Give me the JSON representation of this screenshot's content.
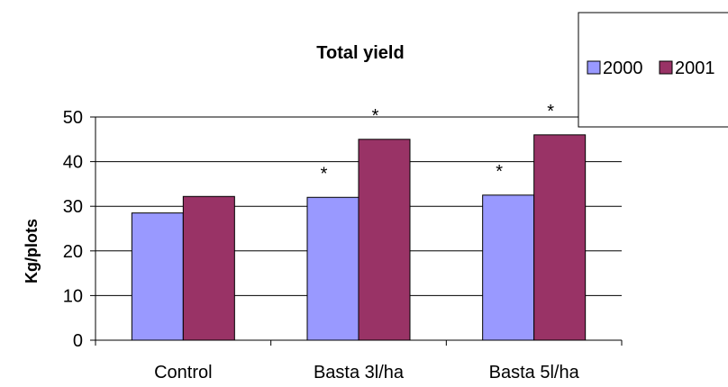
{
  "chart_data": {
    "type": "bar",
    "title": "Total yield",
    "xlabel": "",
    "ylabel": "Kg/plots",
    "ylim": [
      0,
      50
    ],
    "yticks": [
      0,
      10,
      20,
      30,
      40,
      50
    ],
    "grid": true,
    "legend_position": "top-right",
    "categories": [
      "Control",
      "Basta 3l/ha",
      "Basta 5l/ha"
    ],
    "series": [
      {
        "name": "2000",
        "color": "#9999ff",
        "values": [
          28.5,
          32.0,
          32.5
        ]
      },
      {
        "name": "2001",
        "color": "#993366",
        "values": [
          32.2,
          45.0,
          46.0
        ]
      }
    ],
    "annotations": [
      {
        "text": "*",
        "category": "Basta 3l/ha",
        "series": "2000"
      },
      {
        "text": "*",
        "category": "Basta 3l/ha",
        "series": "2001"
      },
      {
        "text": "*",
        "category": "Basta 5l/ha",
        "series": "2000"
      },
      {
        "text": "*",
        "category": "Basta 5l/ha",
        "series": "2001"
      }
    ]
  }
}
